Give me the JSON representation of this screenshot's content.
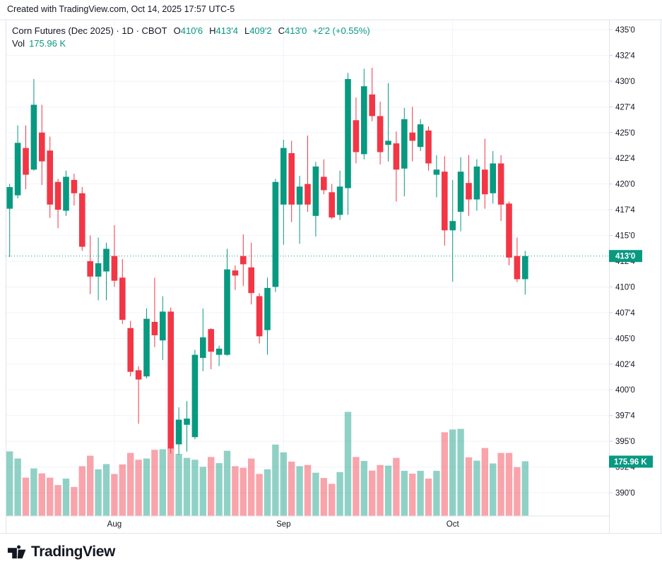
{
  "attribution": "Created with TradingView.com, Oct 14, 2025 17:57 UTC-5",
  "legend": {
    "title": "Corn Futures (Dec 2025) · 1D · CBOT",
    "ohlc": [
      {
        "k": "O",
        "v": "410'6"
      },
      {
        "k": "H",
        "v": "413'4"
      },
      {
        "k": "L",
        "v": "409'2"
      },
      {
        "k": "C",
        "v": "413'0"
      }
    ],
    "change": "+2'2 (+0.55%)",
    "vol_label": "Vol",
    "vol_value": "175.96 K"
  },
  "logo_text": "TradingView",
  "colors": {
    "up": "#089981",
    "down": "#f23645",
    "vol_up": "rgba(8,153,129,0.45)",
    "vol_down": "rgba(242,54,69,0.45)",
    "grid": "#f0f3fa",
    "border": "#e0e3eb",
    "tick": "#d1d4dc",
    "text": "#131722",
    "badge_bg": "#089981",
    "badge_text": "#ffffff",
    "price_line": "#089981"
  },
  "y_axis": {
    "top_price": 435,
    "bottom_price": 390,
    "step": 2.5,
    "labels": [
      "435'0",
      "432'4",
      "430'0",
      "427'4",
      "425'0",
      "422'4",
      "420'0",
      "417'4",
      "415'0",
      "412'4",
      "410'0",
      "407'4",
      "405'0",
      "402'4",
      "400'0",
      "397'4",
      "395'0",
      "392'4",
      "390'0"
    ]
  },
  "x_axis": {
    "labels": [
      {
        "text": "Aug",
        "index": 13
      },
      {
        "text": "Sep",
        "index": 34
      },
      {
        "text": "Oct",
        "index": 55
      }
    ]
  },
  "last_price": {
    "price": 413.0,
    "badge": "413'0"
  },
  "volume_badge": {
    "value_k": 175.96,
    "badge": "175.96 K"
  },
  "chart_data": {
    "type": "candlestick_with_volume",
    "title": "Corn Futures (Dec 2025)",
    "interval": "1D",
    "exchange": "CBOT",
    "price_unit": "US cents/bushel, eighths notation on axis (e.g. 412'4 = 412.50)",
    "volume_unit": "thousands of contracts (K)",
    "ylim": [
      390,
      435
    ],
    "grid": true,
    "last_bar": {
      "open": "410'6",
      "high": "413'4",
      "low": "409'2",
      "close": "413'0",
      "change": "+2'2 (+0.55%)",
      "volume": "175.96 K"
    },
    "columns": [
      "open",
      "high",
      "low",
      "close",
      "volume_k"
    ],
    "candles": [
      [
        417.6,
        420.0,
        412.9,
        419.7,
        208
      ],
      [
        418.9,
        425.7,
        418.6,
        424.0,
        185
      ],
      [
        423.5,
        425.7,
        419.5,
        420.9,
        123
      ],
      [
        421.4,
        430.2,
        421.3,
        427.7,
        153
      ],
      [
        425.0,
        427.7,
        419.9,
        422.2,
        137
      ],
      [
        423.25,
        424.6,
        416.7,
        418.0,
        123
      ],
      [
        420.2,
        420.5,
        415.7,
        417.5,
        99
      ],
      [
        417.4,
        421.3,
        416.9,
        420.7,
        120
      ],
      [
        420.4,
        421.0,
        417.9,
        419.1,
        93
      ],
      [
        419.1,
        419.7,
        413.5,
        413.9,
        160
      ],
      [
        412.5,
        415.0,
        409.3,
        411.0,
        194
      ],
      [
        411.0,
        414.8,
        408.7,
        412.3,
        150
      ],
      [
        411.5,
        414.3,
        408.7,
        413.7,
        167
      ],
      [
        413.0,
        416.0,
        410.0,
        410.6,
        135
      ],
      [
        410.9,
        412.7,
        406.4,
        406.8,
        166
      ],
      [
        406.0,
        406.7,
        401.3,
        401.75,
        203
      ],
      [
        401.9,
        402.3,
        396.7,
        401.0,
        181
      ],
      [
        401.3,
        407.9,
        401.1,
        406.9,
        185
      ],
      [
        406.6,
        410.9,
        404.15,
        405.3,
        213
      ],
      [
        404.8,
        409.1,
        402.9,
        407.6,
        215
      ],
      [
        407.6,
        408.0,
        393.8,
        394.3,
        219
      ],
      [
        394.7,
        398.3,
        393.7,
        397.1,
        200
      ],
      [
        396.6,
        398.9,
        394.0,
        397.2,
        187
      ],
      [
        395.4,
        403.9,
        395.2,
        403.4,
        181
      ],
      [
        403.1,
        407.9,
        401.8,
        405.1,
        158
      ],
      [
        405.9,
        406.0,
        402.0,
        403.7,
        190
      ],
      [
        403.4,
        404.3,
        402.3,
        404.0,
        170
      ],
      [
        403.4,
        413.7,
        403.3,
        411.7,
        210
      ],
      [
        411.6,
        412.1,
        409.7,
        411.1,
        160
      ],
      [
        413.0,
        415.1,
        410.1,
        412.2,
        155
      ],
      [
        411.9,
        414.3,
        408.3,
        409.4,
        185
      ],
      [
        409.1,
        409.4,
        404.5,
        405.2,
        135
      ],
      [
        405.8,
        410.9,
        403.4,
        409.9,
        150
      ],
      [
        410.0,
        420.5,
        409.5,
        420.2,
        230
      ],
      [
        418.0,
        424.3,
        414.1,
        423.5,
        205
      ],
      [
        423.0,
        424.2,
        416.3,
        418.0,
        175
      ],
      [
        418.0,
        420.8,
        414.2,
        419.75,
        160
      ],
      [
        420.0,
        424.7,
        417.3,
        418.0,
        164
      ],
      [
        416.9,
        422.15,
        414.9,
        421.7,
        139
      ],
      [
        420.7,
        422.4,
        419.0,
        419.4,
        122
      ],
      [
        419.2,
        420.0,
        416.6,
        416.75,
        103
      ],
      [
        417.0,
        421.3,
        416.5,
        419.75,
        141
      ],
      [
        419.6,
        430.8,
        417.0,
        430.2,
        336
      ],
      [
        426.2,
        428.4,
        422.0,
        423.1,
        190
      ],
      [
        422.9,
        431.2,
        422.4,
        429.5,
        177
      ],
      [
        428.7,
        431.3,
        426.1,
        426.6,
        146
      ],
      [
        426.6,
        428.0,
        421.9,
        423.1,
        164
      ],
      [
        423.8,
        429.8,
        422.2,
        424.2,
        162
      ],
      [
        423.95,
        425.1,
        418.3,
        421.4,
        187
      ],
      [
        421.5,
        427.4,
        418.8,
        426.3,
        145
      ],
      [
        425.0,
        427.5,
        422.2,
        424.2,
        136
      ],
      [
        423.6,
        426.3,
        423.2,
        425.8,
        145
      ],
      [
        425.2,
        425.6,
        421.3,
        422.0,
        120
      ],
      [
        420.9,
        422.8,
        418.7,
        421.4,
        145
      ],
      [
        421.2,
        422.7,
        414.0,
        415.5,
        270
      ],
      [
        415.5,
        420.4,
        410.5,
        416.4,
        279
      ],
      [
        417.3,
        422.6,
        415.4,
        421.2,
        281
      ],
      [
        420.1,
        422.8,
        416.9,
        418.5,
        189
      ],
      [
        418.5,
        422.4,
        417.4,
        421.7,
        178
      ],
      [
        421.4,
        424.4,
        417.6,
        419.0,
        219
      ],
      [
        419.1,
        423.2,
        418.1,
        422.0,
        169
      ],
      [
        422.0,
        422.8,
        416.4,
        418.0,
        203
      ],
      [
        418.1,
        418.3,
        412.1,
        412.85,
        203
      ],
      [
        413.0,
        414.8,
        410.45,
        410.75,
        157
      ],
      [
        410.75,
        413.5,
        409.25,
        413.0,
        175.96
      ]
    ]
  }
}
